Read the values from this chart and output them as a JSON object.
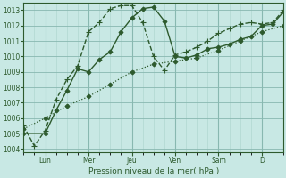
{
  "xlabel": "Pression niveau de la mer( hPa )",
  "background_color": "#c8e8e4",
  "grid_color_minor": "#aad4cc",
  "grid_color_major": "#88b8b0",
  "line_color": "#2d5a2d",
  "ylim": [
    1003.8,
    1013.5
  ],
  "yticks": [
    1004,
    1005,
    1006,
    1007,
    1008,
    1009,
    1010,
    1011,
    1012,
    1013
  ],
  "day_labels": [
    "Lun",
    "Mer",
    "Jeu",
    "Ven",
    "Sam",
    "D"
  ],
  "day_positions": [
    24,
    72,
    120,
    168,
    216,
    264
  ],
  "xlim_data": [
    0,
    288
  ],
  "series": [
    {
      "x": [
        0,
        24,
        36,
        48,
        60,
        72,
        84,
        96,
        108,
        120,
        132,
        144,
        156,
        168,
        180,
        192,
        204,
        216,
        228,
        240,
        252,
        264,
        276,
        288
      ],
      "y": [
        1005.0,
        1005.0,
        1006.5,
        1007.8,
        1009.2,
        1009.0,
        1009.8,
        1010.3,
        1011.6,
        1012.5,
        1013.1,
        1013.2,
        1012.3,
        1010.0,
        1009.9,
        1010.1,
        1010.5,
        1010.6,
        1010.8,
        1011.1,
        1011.3,
        1012.0,
        1012.1,
        1012.9
      ],
      "style": "-",
      "marker": "D",
      "markersize": 2.5,
      "linewidth": 1.0
    },
    {
      "x": [
        0,
        12,
        24,
        36,
        48,
        60,
        72,
        84,
        96,
        108,
        120,
        132,
        144,
        156,
        168,
        180,
        192,
        204,
        216,
        228,
        240,
        252,
        264,
        276,
        288
      ],
      "y": [
        1005.5,
        1004.2,
        1005.2,
        1007.2,
        1008.5,
        1009.4,
        1011.6,
        1012.2,
        1013.1,
        1013.3,
        1013.3,
        1012.2,
        1010.0,
        1009.1,
        1010.1,
        1010.3,
        1010.6,
        1011.0,
        1011.5,
        1011.8,
        1012.1,
        1012.2,
        1012.1,
        1012.2,
        1013.0
      ],
      "style": "--",
      "marker": "+",
      "markersize": 4,
      "linewidth": 1.0
    },
    {
      "x": [
        0,
        24,
        48,
        72,
        96,
        120,
        144,
        168,
        192,
        216,
        240,
        264,
        288
      ],
      "y": [
        1005.3,
        1006.0,
        1006.8,
        1007.4,
        1008.2,
        1009.0,
        1009.5,
        1009.7,
        1009.9,
        1010.4,
        1011.0,
        1011.6,
        1012.0
      ],
      "style": ":",
      "marker": "D",
      "markersize": 2.5,
      "linewidth": 0.9
    }
  ]
}
